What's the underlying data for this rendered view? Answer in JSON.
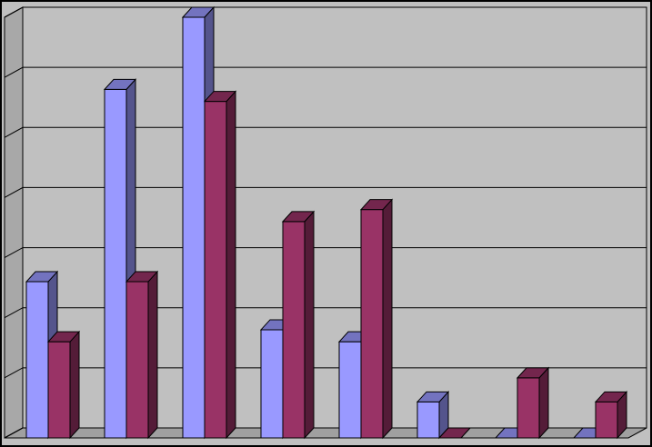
{
  "chart_data": {
    "type": "bar3d",
    "categories": [
      null,
      null,
      null,
      null,
      null,
      null,
      null,
      null
    ],
    "series": [
      {
        "color": "#9999ff",
        "values": [
          2.6,
          5.8,
          7.0,
          1.8,
          1.6,
          0.6,
          0,
          0
        ]
      },
      {
        "color": "#993366",
        "values": [
          1.6,
          2.6,
          5.6,
          3.6,
          3.8,
          0,
          1.0,
          0.6
        ]
      }
    ],
    "ylim": [
      0,
      7
    ],
    "yticks": [
      0,
      1,
      2,
      3,
      4,
      5,
      6,
      7
    ],
    "grid": true
  }
}
